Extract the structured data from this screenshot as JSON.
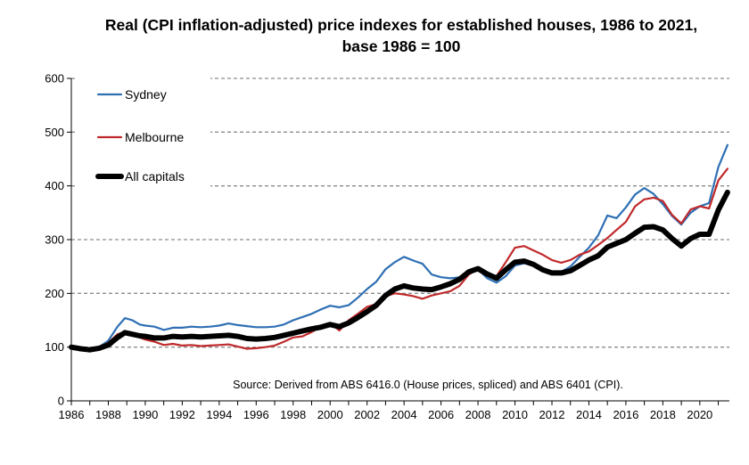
{
  "chart_data": {
    "type": "line",
    "title": "Real (CPI inflation-adjusted) price indexes for established houses, 1986 to 2021,",
    "subtitle": "base 1986 = 100",
    "source_note": "Source: Derived from ABS 6416.0 (House prices, spliced) and ABS 6401 (CPI).",
    "xlim": [
      1986,
      2021.6
    ],
    "ylim": [
      0,
      600
    ],
    "x_ticks": [
      "1986",
      "1988",
      "1990",
      "1992",
      "1994",
      "1996",
      "1998",
      "2000",
      "2002",
      "2004",
      "2006",
      "2008",
      "2010",
      "2012",
      "2014",
      "2016",
      "2018",
      "2020"
    ],
    "y_ticks": [
      "0",
      "100",
      "200",
      "300",
      "400",
      "500",
      "600"
    ],
    "grid": "horizontal dashed",
    "legend_placement": "top-left",
    "series": [
      {
        "name": "Sydney",
        "color": "#2e6fb4",
        "points": [
          [
            1986,
            100
          ],
          [
            1986.5,
            97
          ],
          [
            1987,
            95
          ],
          [
            1987.5,
            100
          ],
          [
            1988,
            112
          ],
          [
            1988.5,
            138
          ],
          [
            1988.9,
            154
          ],
          [
            1989.3,
            150
          ],
          [
            1989.7,
            142
          ],
          [
            1990,
            140
          ],
          [
            1990.5,
            138
          ],
          [
            1991,
            132
          ],
          [
            1991.5,
            136
          ],
          [
            1992,
            136
          ],
          [
            1992.5,
            138
          ],
          [
            1993,
            137
          ],
          [
            1993.5,
            138
          ],
          [
            1994,
            140
          ],
          [
            1994.5,
            144
          ],
          [
            1995,
            141
          ],
          [
            1995.5,
            139
          ],
          [
            1996,
            137
          ],
          [
            1996.5,
            137
          ],
          [
            1997,
            138
          ],
          [
            1997.5,
            142
          ],
          [
            1998,
            150
          ],
          [
            1998.5,
            156
          ],
          [
            1999,
            162
          ],
          [
            1999.5,
            170
          ],
          [
            2000,
            177
          ],
          [
            2000.5,
            174
          ],
          [
            2001,
            178
          ],
          [
            2001.5,
            192
          ],
          [
            2002,
            208
          ],
          [
            2002.5,
            222
          ],
          [
            2003,
            245
          ],
          [
            2003.5,
            258
          ],
          [
            2004,
            268
          ],
          [
            2004.5,
            261
          ],
          [
            2005,
            255
          ],
          [
            2005.5,
            235
          ],
          [
            2006,
            230
          ],
          [
            2006.5,
            228
          ],
          [
            2007,
            230
          ],
          [
            2007.5,
            238
          ],
          [
            2008,
            245
          ],
          [
            2008.5,
            228
          ],
          [
            2009,
            220
          ],
          [
            2009.5,
            232
          ],
          [
            2010,
            252
          ],
          [
            2010.5,
            256
          ],
          [
            2011,
            252
          ],
          [
            2011.5,
            244
          ],
          [
            2012,
            239
          ],
          [
            2012.5,
            240
          ],
          [
            2013,
            250
          ],
          [
            2013.5,
            268
          ],
          [
            2014,
            285
          ],
          [
            2014.5,
            308
          ],
          [
            2015,
            345
          ],
          [
            2015.5,
            340
          ],
          [
            2016,
            360
          ],
          [
            2016.5,
            384
          ],
          [
            2017,
            396
          ],
          [
            2017.5,
            385
          ],
          [
            2018,
            366
          ],
          [
            2018.5,
            344
          ],
          [
            2019,
            328
          ],
          [
            2019.5,
            350
          ],
          [
            2020,
            362
          ],
          [
            2020.5,
            368
          ],
          [
            2021,
            435
          ],
          [
            2021.5,
            476
          ]
        ]
      },
      {
        "name": "Melbourne",
        "color": "#c0292b",
        "points": [
          [
            1986,
            100
          ],
          [
            1986.5,
            97
          ],
          [
            1987,
            96
          ],
          [
            1987.5,
            100
          ],
          [
            1988,
            108
          ],
          [
            1988.5,
            124
          ],
          [
            1988.9,
            128
          ],
          [
            1989.3,
            124
          ],
          [
            1989.7,
            118
          ],
          [
            1990,
            114
          ],
          [
            1990.5,
            110
          ],
          [
            1991,
            104
          ],
          [
            1991.5,
            106
          ],
          [
            1992,
            103
          ],
          [
            1992.5,
            104
          ],
          [
            1993,
            102
          ],
          [
            1993.5,
            103
          ],
          [
            1994,
            104
          ],
          [
            1994.5,
            105
          ],
          [
            1995,
            101
          ],
          [
            1995.5,
            97
          ],
          [
            1996,
            98
          ],
          [
            1996.5,
            100
          ],
          [
            1997,
            103
          ],
          [
            1997.5,
            110
          ],
          [
            1998,
            118
          ],
          [
            1998.5,
            120
          ],
          [
            1999,
            128
          ],
          [
            1999.5,
            138
          ],
          [
            2000,
            145
          ],
          [
            2000.5,
            131
          ],
          [
            2001,
            150
          ],
          [
            2001.5,
            162
          ],
          [
            2002,
            175
          ],
          [
            2002.5,
            180
          ],
          [
            2003,
            195
          ],
          [
            2003.5,
            200
          ],
          [
            2004,
            198
          ],
          [
            2004.5,
            195
          ],
          [
            2005,
            190
          ],
          [
            2005.5,
            196
          ],
          [
            2006,
            200
          ],
          [
            2006.5,
            204
          ],
          [
            2007,
            214
          ],
          [
            2007.5,
            235
          ],
          [
            2008,
            245
          ],
          [
            2008.5,
            238
          ],
          [
            2009,
            232
          ],
          [
            2009.5,
            258
          ],
          [
            2010,
            285
          ],
          [
            2010.5,
            288
          ],
          [
            2011,
            280
          ],
          [
            2011.5,
            272
          ],
          [
            2012,
            262
          ],
          [
            2012.5,
            257
          ],
          [
            2013,
            262
          ],
          [
            2013.5,
            272
          ],
          [
            2014,
            278
          ],
          [
            2014.5,
            290
          ],
          [
            2015,
            303
          ],
          [
            2015.5,
            318
          ],
          [
            2016,
            333
          ],
          [
            2016.5,
            362
          ],
          [
            2017,
            375
          ],
          [
            2017.5,
            378
          ],
          [
            2018,
            372
          ],
          [
            2018.5,
            346
          ],
          [
            2019,
            330
          ],
          [
            2019.5,
            356
          ],
          [
            2020,
            362
          ],
          [
            2020.5,
            358
          ],
          [
            2021,
            410
          ],
          [
            2021.5,
            432
          ]
        ]
      },
      {
        "name": "All capitals",
        "color": "#000000",
        "points": [
          [
            1986,
            100
          ],
          [
            1986.5,
            97
          ],
          [
            1987,
            95
          ],
          [
            1987.5,
            98
          ],
          [
            1988,
            104
          ],
          [
            1988.5,
            118
          ],
          [
            1988.9,
            127
          ],
          [
            1989.3,
            124
          ],
          [
            1989.7,
            121
          ],
          [
            1990,
            120
          ],
          [
            1990.5,
            117
          ],
          [
            1991,
            117
          ],
          [
            1991.5,
            120
          ],
          [
            1992,
            119
          ],
          [
            1992.5,
            120
          ],
          [
            1993,
            119
          ],
          [
            1993.5,
            120
          ],
          [
            1994,
            121
          ],
          [
            1994.5,
            122
          ],
          [
            1995,
            120
          ],
          [
            1995.5,
            116
          ],
          [
            1996,
            115
          ],
          [
            1996.5,
            116
          ],
          [
            1997,
            118
          ],
          [
            1997.5,
            122
          ],
          [
            1998,
            126
          ],
          [
            1998.5,
            130
          ],
          [
            1999,
            134
          ],
          [
            1999.5,
            137
          ],
          [
            2000,
            142
          ],
          [
            2000.5,
            138
          ],
          [
            2001,
            145
          ],
          [
            2001.5,
            155
          ],
          [
            2002,
            166
          ],
          [
            2002.5,
            178
          ],
          [
            2003,
            196
          ],
          [
            2003.5,
            208
          ],
          [
            2004,
            214
          ],
          [
            2004.5,
            210
          ],
          [
            2005,
            208
          ],
          [
            2005.5,
            207
          ],
          [
            2006,
            212
          ],
          [
            2006.5,
            218
          ],
          [
            2007,
            226
          ],
          [
            2007.5,
            240
          ],
          [
            2008,
            246
          ],
          [
            2008.5,
            236
          ],
          [
            2009,
            228
          ],
          [
            2009.5,
            244
          ],
          [
            2010,
            258
          ],
          [
            2010.5,
            260
          ],
          [
            2011,
            254
          ],
          [
            2011.5,
            244
          ],
          [
            2012,
            238
          ],
          [
            2012.5,
            238
          ],
          [
            2013,
            242
          ],
          [
            2013.5,
            252
          ],
          [
            2014,
            262
          ],
          [
            2014.5,
            270
          ],
          [
            2015,
            286
          ],
          [
            2015.5,
            293
          ],
          [
            2016,
            300
          ],
          [
            2016.5,
            312
          ],
          [
            2017,
            323
          ],
          [
            2017.5,
            324
          ],
          [
            2018,
            318
          ],
          [
            2018.5,
            302
          ],
          [
            2019,
            288
          ],
          [
            2019.5,
            302
          ],
          [
            2020,
            310
          ],
          [
            2020.5,
            310
          ],
          [
            2021,
            355
          ],
          [
            2021.5,
            388
          ]
        ]
      }
    ]
  }
}
